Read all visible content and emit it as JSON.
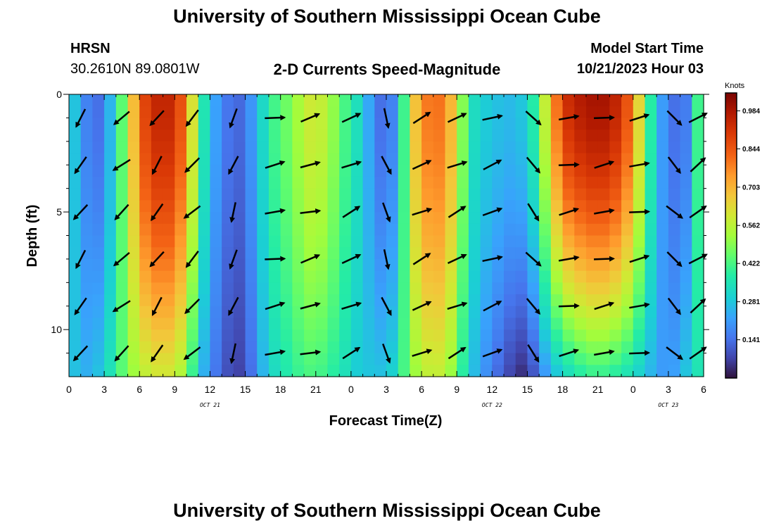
{
  "header": {
    "title": "University of Southern Mississippi Ocean Cube",
    "station": "HRSN",
    "coords": "30.2610N  89.0801W",
    "subtitle": "2-D Currents Speed-Magnitude",
    "model_start_label": "Model Start Time",
    "model_start_value": "10/21/2023 Hour 03"
  },
  "footer": {
    "title": "University of Southern Mississippi Ocean Cube"
  },
  "colors": {
    "arrow": "#000000"
  },
  "chart_data": {
    "type": "heatmap",
    "title": "2-D Currents Speed-Magnitude",
    "xlabel": "Forecast Time(Z)",
    "ylabel": "Depth (ft)",
    "x_range_hours": [
      0,
      54
    ],
    "y_range_ft": [
      0,
      12
    ],
    "x_ticks": [
      {
        "h": 0,
        "label": "0"
      },
      {
        "h": 3,
        "label": "3"
      },
      {
        "h": 6,
        "label": "6"
      },
      {
        "h": 9,
        "label": "9"
      },
      {
        "h": 12,
        "label": "12"
      },
      {
        "h": 15,
        "label": "15"
      },
      {
        "h": 18,
        "label": "18"
      },
      {
        "h": 21,
        "label": "21"
      },
      {
        "h": 24,
        "label": "0"
      },
      {
        "h": 27,
        "label": "3"
      },
      {
        "h": 30,
        "label": "6"
      },
      {
        "h": 33,
        "label": "9"
      },
      {
        "h": 36,
        "label": "12"
      },
      {
        "h": 39,
        "label": "15"
      },
      {
        "h": 42,
        "label": "18"
      },
      {
        "h": 45,
        "label": "21"
      },
      {
        "h": 48,
        "label": "0"
      },
      {
        "h": 51,
        "label": "3"
      },
      {
        "h": 54,
        "label": "6"
      }
    ],
    "y_ticks": [
      {
        "v": 0,
        "label": "0"
      },
      {
        "v": 5,
        "label": "5"
      },
      {
        "v": 10,
        "label": "10"
      }
    ],
    "date_labels": [
      {
        "h": 12,
        "label": "OCT 21"
      },
      {
        "h": 36,
        "label": "OCT 22"
      },
      {
        "h": 51,
        "label": "OCT 23"
      }
    ],
    "colorbar": {
      "unit": "Knots",
      "min": 0,
      "max": 1.05,
      "ticks": [
        "0.984",
        "0.844",
        "0.703",
        "0.562",
        "0.422",
        "0.281",
        "0.141"
      ]
    },
    "profile_knots": [
      {
        "h": 0,
        "top": 0.33,
        "bot": 0.3
      },
      {
        "h": 1,
        "top": 0.22,
        "bot": 0.24
      },
      {
        "h": 2,
        "top": 0.12,
        "bot": 0.25
      },
      {
        "h": 3,
        "top": 0.16,
        "bot": 0.3
      },
      {
        "h": 4,
        "top": 0.34,
        "bot": 0.4
      },
      {
        "h": 5,
        "top": 0.55,
        "bot": 0.48
      },
      {
        "h": 6,
        "top": 0.83,
        "bot": 0.55
      },
      {
        "h": 7,
        "top": 0.93,
        "bot": 0.58
      },
      {
        "h": 8,
        "top": 0.96,
        "bot": 0.6
      },
      {
        "h": 9,
        "top": 0.93,
        "bot": 0.58
      },
      {
        "h": 10,
        "top": 0.78,
        "bot": 0.5
      },
      {
        "h": 11,
        "top": 0.45,
        "bot": 0.3
      },
      {
        "h": 12,
        "top": 0.26,
        "bot": 0.18
      },
      {
        "h": 13,
        "top": 0.18,
        "bot": 0.12
      },
      {
        "h": 14,
        "top": 0.12,
        "bot": 0.06
      },
      {
        "h": 15,
        "top": 0.14,
        "bot": 0.08
      },
      {
        "h": 16,
        "top": 0.26,
        "bot": 0.2
      },
      {
        "h": 17,
        "top": 0.38,
        "bot": 0.3
      },
      {
        "h": 18,
        "top": 0.45,
        "bot": 0.35
      },
      {
        "h": 19,
        "top": 0.48,
        "bot": 0.38
      },
      {
        "h": 20,
        "top": 0.58,
        "bot": 0.42
      },
      {
        "h": 21,
        "top": 0.6,
        "bot": 0.42
      },
      {
        "h": 22,
        "top": 0.55,
        "bot": 0.4
      },
      {
        "h": 23,
        "top": 0.46,
        "bot": 0.36
      },
      {
        "h": 24,
        "top": 0.38,
        "bot": 0.32
      },
      {
        "h": 25,
        "top": 0.3,
        "bot": 0.26
      },
      {
        "h": 26,
        "top": 0.16,
        "bot": 0.3
      },
      {
        "h": 27,
        "top": 0.12,
        "bot": 0.25
      },
      {
        "h": 28,
        "top": 0.22,
        "bot": 0.36
      },
      {
        "h": 29,
        "top": 0.6,
        "bot": 0.48
      },
      {
        "h": 30,
        "top": 0.76,
        "bot": 0.55
      },
      {
        "h": 31,
        "top": 0.82,
        "bot": 0.58
      },
      {
        "h": 32,
        "top": 0.78,
        "bot": 0.56
      },
      {
        "h": 33,
        "top": 0.62,
        "bot": 0.46
      },
      {
        "h": 34,
        "top": 0.36,
        "bot": 0.3
      },
      {
        "h": 35,
        "top": 0.3,
        "bot": 0.22
      },
      {
        "h": 36,
        "top": 0.28,
        "bot": 0.16
      },
      {
        "h": 37,
        "top": 0.26,
        "bot": 0.1
      },
      {
        "h": 38,
        "top": 0.26,
        "bot": 0.05
      },
      {
        "h": 39,
        "top": 0.3,
        "bot": 0.03
      },
      {
        "h": 40,
        "top": 0.45,
        "bot": 0.16
      },
      {
        "h": 41,
        "top": 0.7,
        "bot": 0.24
      },
      {
        "h": 42,
        "top": 0.9,
        "bot": 0.3
      },
      {
        "h": 43,
        "top": 0.96,
        "bot": 0.35
      },
      {
        "h": 44,
        "top": 0.98,
        "bot": 0.38
      },
      {
        "h": 45,
        "top": 1.0,
        "bot": 0.4
      },
      {
        "h": 46,
        "top": 0.98,
        "bot": 0.38
      },
      {
        "h": 47,
        "top": 0.92,
        "bot": 0.36
      },
      {
        "h": 48,
        "top": 0.78,
        "bot": 0.32
      },
      {
        "h": 49,
        "top": 0.5,
        "bot": 0.28
      },
      {
        "h": 50,
        "top": 0.26,
        "bot": 0.22
      },
      {
        "h": 51,
        "top": 0.16,
        "bot": 0.2
      },
      {
        "h": 52,
        "top": 0.12,
        "bot": 0.24
      },
      {
        "h": 53,
        "top": 0.2,
        "bot": 0.32
      },
      {
        "h": 54,
        "top": 0.62,
        "bot": 0.38
      }
    ],
    "vector_columns": [
      {
        "h": 1,
        "dir": 215
      },
      {
        "h": 4.5,
        "dir": 230
      },
      {
        "h": 7.5,
        "dir": 215
      },
      {
        "h": 10.5,
        "dir": 225
      },
      {
        "h": 14,
        "dir": 200
      },
      {
        "h": 17.5,
        "dir": 80
      },
      {
        "h": 20.5,
        "dir": 75
      },
      {
        "h": 24,
        "dir": 65
      },
      {
        "h": 27,
        "dir": 160
      },
      {
        "h": 30,
        "dir": 65
      },
      {
        "h": 33,
        "dir": 65
      },
      {
        "h": 36,
        "dir": 70
      },
      {
        "h": 39.5,
        "dir": 140
      },
      {
        "h": 42.5,
        "dir": 80
      },
      {
        "h": 45.5,
        "dir": 80
      },
      {
        "h": 48.5,
        "dir": 80
      },
      {
        "h": 51.5,
        "dir": 135
      },
      {
        "h": 53.5,
        "dir": 55
      }
    ],
    "vector_depths_ft": [
      1,
      3,
      5,
      7,
      9,
      11
    ]
  }
}
